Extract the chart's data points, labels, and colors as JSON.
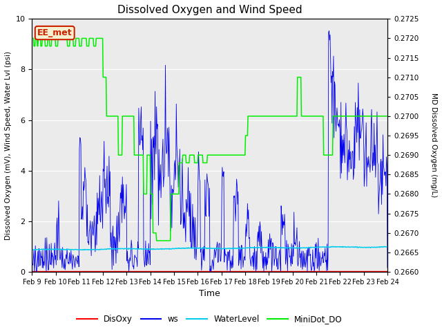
{
  "title": "Dissolved Oxygen and Wind Speed",
  "ylabel_left": "Dissolved Oxygen (mV), Wind Speed, Water Lvl (psi)",
  "ylabel_right": "MD Dissolved Oxygen (mg/L)",
  "xlabel": "Time",
  "ylim_left": [
    0.0,
    10.0
  ],
  "ylim_right": [
    0.266,
    0.2725
  ],
  "xtick_labels": [
    "Feb 9",
    "Feb 10",
    "Feb 11",
    "Feb 12",
    "Feb 13",
    "Feb 14",
    "Feb 15",
    "Feb 16",
    "Feb 17",
    "Feb 18",
    "Feb 19",
    "Feb 20",
    "Feb 21",
    "Feb 22",
    "Feb 23",
    "Feb 24"
  ],
  "colors": {
    "disoxy": "#ff0000",
    "ws": "#0000ee",
    "waterlevel": "#00ccee",
    "minidot": "#00ee00",
    "background": "#ebebeb",
    "grid": "#ffffff"
  },
  "annotation_text": "EE_met",
  "annotation_facecolor": "#f5f0d0",
  "annotation_edgecolor": "#cc2200"
}
